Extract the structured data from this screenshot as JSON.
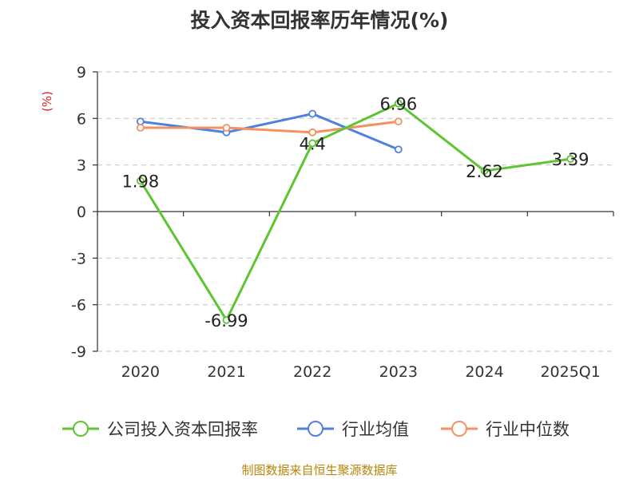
{
  "chart_data": {
    "type": "line",
    "title": "投入资本回报率历年情况(%)",
    "ylabel": "(%)",
    "categories": [
      "2020",
      "2021",
      "2022",
      "2023",
      "2024",
      "2025Q1"
    ],
    "ylim": [
      -9,
      9
    ],
    "yticks": [
      9,
      6,
      3,
      0,
      -3,
      -6,
      -9
    ],
    "ytick_labels": [
      "9",
      "6",
      "3",
      "0",
      "-3",
      "-6",
      "-9"
    ],
    "grid": true,
    "legend_position": "bottom",
    "series": [
      {
        "name": "公司投入资本回报率",
        "color": "#5ec532",
        "values": [
          1.98,
          -6.99,
          4.4,
          6.96,
          2.62,
          3.39
        ],
        "labels": [
          "1.98",
          "-6.99",
          "4.4",
          "6.96",
          "2.62",
          "3.39"
        ]
      },
      {
        "name": "行业均值",
        "color": "#4e80e0",
        "values": [
          5.8,
          5.1,
          6.3,
          4.0,
          null,
          null
        ]
      },
      {
        "name": "行业中位数",
        "color": "#f59160",
        "values": [
          5.4,
          5.4,
          5.1,
          5.8,
          null,
          null
        ]
      }
    ]
  },
  "colors": {
    "ylabel": "#e02020",
    "axis": "#333333",
    "grid": "#cccccc",
    "source": "#b8860b"
  },
  "source": "制图数据来自恒生聚源数据库"
}
